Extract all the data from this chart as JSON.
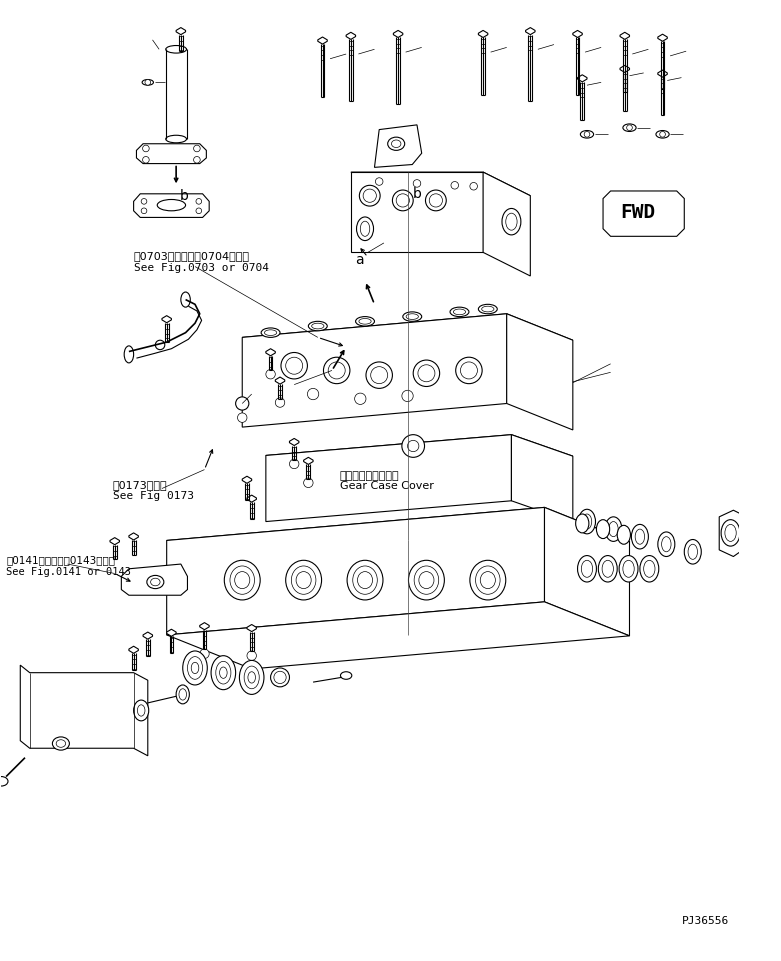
{
  "bg_color": "#ffffff",
  "line_color": "#000000",
  "fig_width": 7.81,
  "fig_height": 9.62,
  "dpi": 100,
  "part_number": "PJ36556",
  "fwd_label": "FWD",
  "label_0703": "第0703図または第0704図参照",
  "label_0703b": "See Fig.0703 or 0704",
  "label_0173": "第0173図参照",
  "label_0173b": "See Fig 0173",
  "label_0141": "第0141図または第0143図参照",
  "label_0141b": "See Fig.0141 or 0143",
  "label_gear": "ギヤーケースカバー",
  "label_gearb": "Gear Case Cover",
  "lw_thin": 0.5,
  "lw_med": 0.8,
  "lw_thick": 1.2
}
